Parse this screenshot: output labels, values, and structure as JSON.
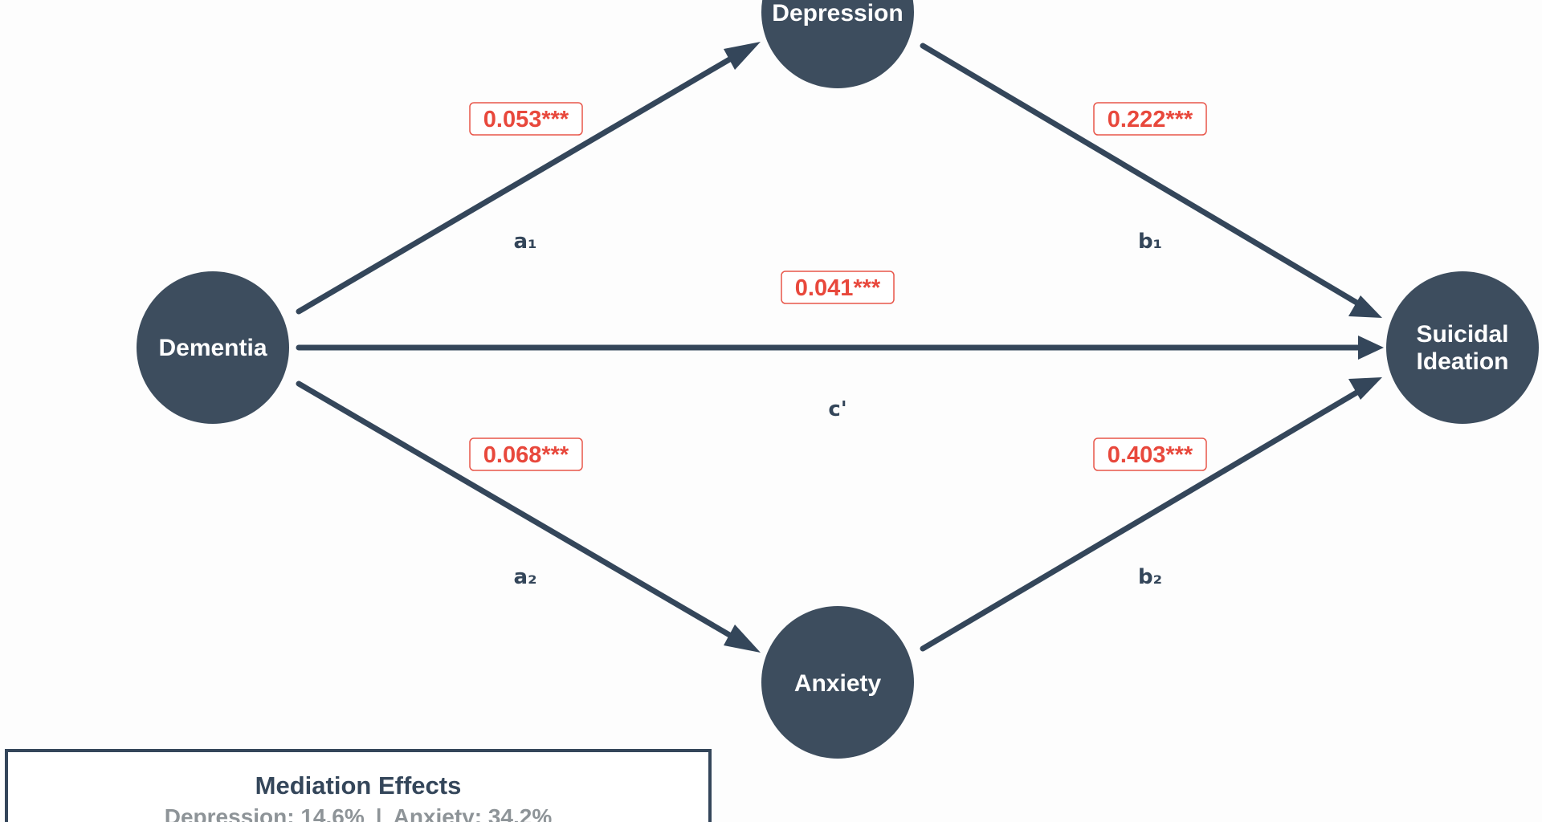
{
  "nodes": {
    "dementia": "Dementia",
    "depression": "Depression",
    "anxiety": "Anxiety",
    "suicidal_ideation_line1": "Suicidal",
    "suicidal_ideation_line2": "Ideation"
  },
  "paths": {
    "a1": {
      "label": "a₁",
      "coefficient": "0.053***"
    },
    "b1": {
      "label": "b₁",
      "coefficient": "0.222***"
    },
    "c_prime": {
      "label": "c'",
      "coefficient": "0.041***"
    },
    "a2": {
      "label": "a₂",
      "coefficient": "0.068***"
    },
    "b2": {
      "label": "b₂",
      "coefficient": "0.403***"
    }
  },
  "legend": {
    "title": "Mediation Effects",
    "depression_effect": "Depression: 14.6%",
    "separator": "|",
    "anxiety_effect": "Anxiety: 34.2%"
  },
  "colors": {
    "node_fill": "#3d4d5e",
    "edge": "#34465a",
    "coefficient": "#e8483c",
    "legend_text": "#8e9498"
  }
}
